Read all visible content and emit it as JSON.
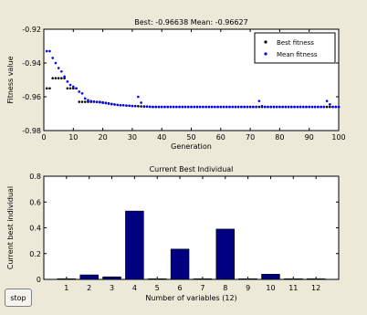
{
  "stop_button": {
    "label": "stop"
  },
  "chart_data": [
    {
      "type": "scatter",
      "title": "Best: -0.96638 Mean: -0.96627",
      "xlabel": "Generation",
      "ylabel": "Fitness value",
      "xlim": [
        0,
        100
      ],
      "ylim": [
        -0.98,
        -0.92
      ],
      "xticks": [
        0,
        10,
        20,
        30,
        40,
        50,
        60,
        70,
        80,
        90,
        100
      ],
      "yticks": [
        -0.98,
        -0.96,
        -0.94,
        -0.92
      ],
      "grid": false,
      "legend": "top-right",
      "colors": {
        "best": "#000000",
        "mean": "#0000ff"
      },
      "series": [
        {
          "name": "Best fitness",
          "x": [
            1,
            2,
            3,
            4,
            5,
            6,
            7,
            8,
            9,
            10,
            11,
            12,
            13,
            14,
            15,
            16,
            17,
            18,
            19,
            20,
            21,
            22,
            23,
            24,
            25,
            26,
            27,
            28,
            29,
            30,
            31,
            32,
            33,
            34,
            35,
            36,
            37,
            38,
            39,
            40,
            41,
            42,
            43,
            44,
            45,
            46,
            47,
            48,
            49,
            50,
            51,
            52,
            53,
            54,
            55,
            56,
            57,
            58,
            59,
            60,
            61,
            62,
            63,
            64,
            65,
            66,
            67,
            68,
            69,
            70,
            71,
            72,
            73,
            74,
            75,
            76,
            77,
            78,
            79,
            80,
            81,
            82,
            83,
            84,
            85,
            86,
            87,
            88,
            89,
            90,
            91,
            92,
            93,
            94,
            95,
            96,
            97,
            98,
            99,
            100
          ],
          "values": [
            -0.955,
            -0.955,
            -0.949,
            -0.949,
            -0.949,
            -0.949,
            -0.949,
            -0.955,
            -0.955,
            -0.955,
            -0.955,
            -0.963,
            -0.963,
            -0.963,
            -0.963,
            -0.963,
            -0.963,
            -0.963,
            -0.963,
            -0.9633,
            -0.9636,
            -0.9639,
            -0.9642,
            -0.9645,
            -0.9648,
            -0.965,
            -0.965,
            -0.9652,
            -0.9653,
            -0.9654,
            -0.9655,
            -0.9656,
            -0.9657,
            -0.9658,
            -0.9658,
            -0.9659,
            -0.966,
            -0.966,
            -0.966,
            -0.966,
            -0.966,
            -0.966,
            -0.966,
            -0.966,
            -0.966,
            -0.966,
            -0.966,
            -0.966,
            -0.966,
            -0.966,
            -0.966,
            -0.966,
            -0.966,
            -0.966,
            -0.966,
            -0.966,
            -0.966,
            -0.966,
            -0.966,
            -0.966,
            -0.966,
            -0.966,
            -0.966,
            -0.966,
            -0.966,
            -0.966,
            -0.966,
            -0.966,
            -0.966,
            -0.966,
            -0.966,
            -0.966,
            -0.966,
            -0.966,
            -0.966,
            -0.966,
            -0.966,
            -0.966,
            -0.966,
            -0.966,
            -0.966,
            -0.966,
            -0.966,
            -0.966,
            -0.966,
            -0.966,
            -0.966,
            -0.966,
            -0.966,
            -0.966,
            -0.966,
            -0.966,
            -0.966,
            -0.966,
            -0.966,
            -0.966,
            -0.966,
            -0.966,
            -0.966,
            -0.966
          ]
        },
        {
          "name": "Mean fitness",
          "x": [
            1,
            2,
            3,
            4,
            5,
            6,
            7,
            8,
            9,
            10,
            11,
            12,
            13,
            14,
            15,
            16,
            17,
            18,
            19,
            20,
            21,
            22,
            23,
            24,
            25,
            26,
            27,
            28,
            29,
            30,
            31,
            32,
            33,
            34,
            35,
            36,
            37,
            38,
            39,
            40,
            41,
            42,
            43,
            44,
            45,
            46,
            47,
            48,
            49,
            50,
            51,
            52,
            53,
            54,
            55,
            56,
            57,
            58,
            59,
            60,
            61,
            62,
            63,
            64,
            65,
            66,
            67,
            68,
            69,
            70,
            71,
            72,
            73,
            74,
            75,
            76,
            77,
            78,
            79,
            80,
            81,
            82,
            83,
            84,
            85,
            86,
            87,
            88,
            89,
            90,
            91,
            92,
            93,
            94,
            95,
            96,
            97,
            98,
            99,
            100
          ],
          "values": [
            -0.933,
            -0.933,
            -0.937,
            -0.94,
            -0.943,
            -0.945,
            -0.948,
            -0.951,
            -0.953,
            -0.954,
            -0.955,
            -0.957,
            -0.958,
            -0.961,
            -0.962,
            -0.9625,
            -0.9628,
            -0.9631,
            -0.9633,
            -0.9636,
            -0.9638,
            -0.9641,
            -0.9644,
            -0.9646,
            -0.9648,
            -0.965,
            -0.965,
            -0.9652,
            -0.9653,
            -0.9655,
            -0.9655,
            -0.96,
            -0.9635,
            -0.9657,
            -0.9658,
            -0.9659,
            -0.966,
            -0.966,
            -0.966,
            -0.966,
            -0.966,
            -0.966,
            -0.966,
            -0.966,
            -0.966,
            -0.966,
            -0.966,
            -0.966,
            -0.966,
            -0.966,
            -0.966,
            -0.966,
            -0.966,
            -0.966,
            -0.966,
            -0.966,
            -0.966,
            -0.966,
            -0.966,
            -0.966,
            -0.966,
            -0.966,
            -0.966,
            -0.966,
            -0.966,
            -0.966,
            -0.966,
            -0.966,
            -0.966,
            -0.966,
            -0.966,
            -0.966,
            -0.9625,
            -0.9655,
            -0.966,
            -0.966,
            -0.966,
            -0.966,
            -0.966,
            -0.966,
            -0.966,
            -0.966,
            -0.966,
            -0.966,
            -0.966,
            -0.966,
            -0.966,
            -0.966,
            -0.966,
            -0.966,
            -0.966,
            -0.966,
            -0.966,
            -0.966,
            -0.966,
            -0.9625,
            -0.9645,
            -0.966,
            -0.966,
            -0.966
          ]
        }
      ]
    },
    {
      "type": "bar",
      "title": "Current Best Individual",
      "xlabel": "Number of variables (12)",
      "ylabel": "Current best individual",
      "categories": [
        "1",
        "2",
        "3",
        "4",
        "5",
        "6",
        "7",
        "8",
        "9",
        "10",
        "11",
        "12"
      ],
      "values": [
        0.005,
        0.035,
        0.02,
        0.53,
        0.005,
        0.235,
        0.005,
        0.39,
        0.005,
        0.04,
        0.005,
        0.005
      ],
      "ylim": [
        0,
        0.8
      ],
      "yticks": [
        0,
        0.2,
        0.4,
        0.6,
        0.8
      ],
      "grid": false,
      "colors": {
        "bar": "#000080"
      }
    }
  ]
}
